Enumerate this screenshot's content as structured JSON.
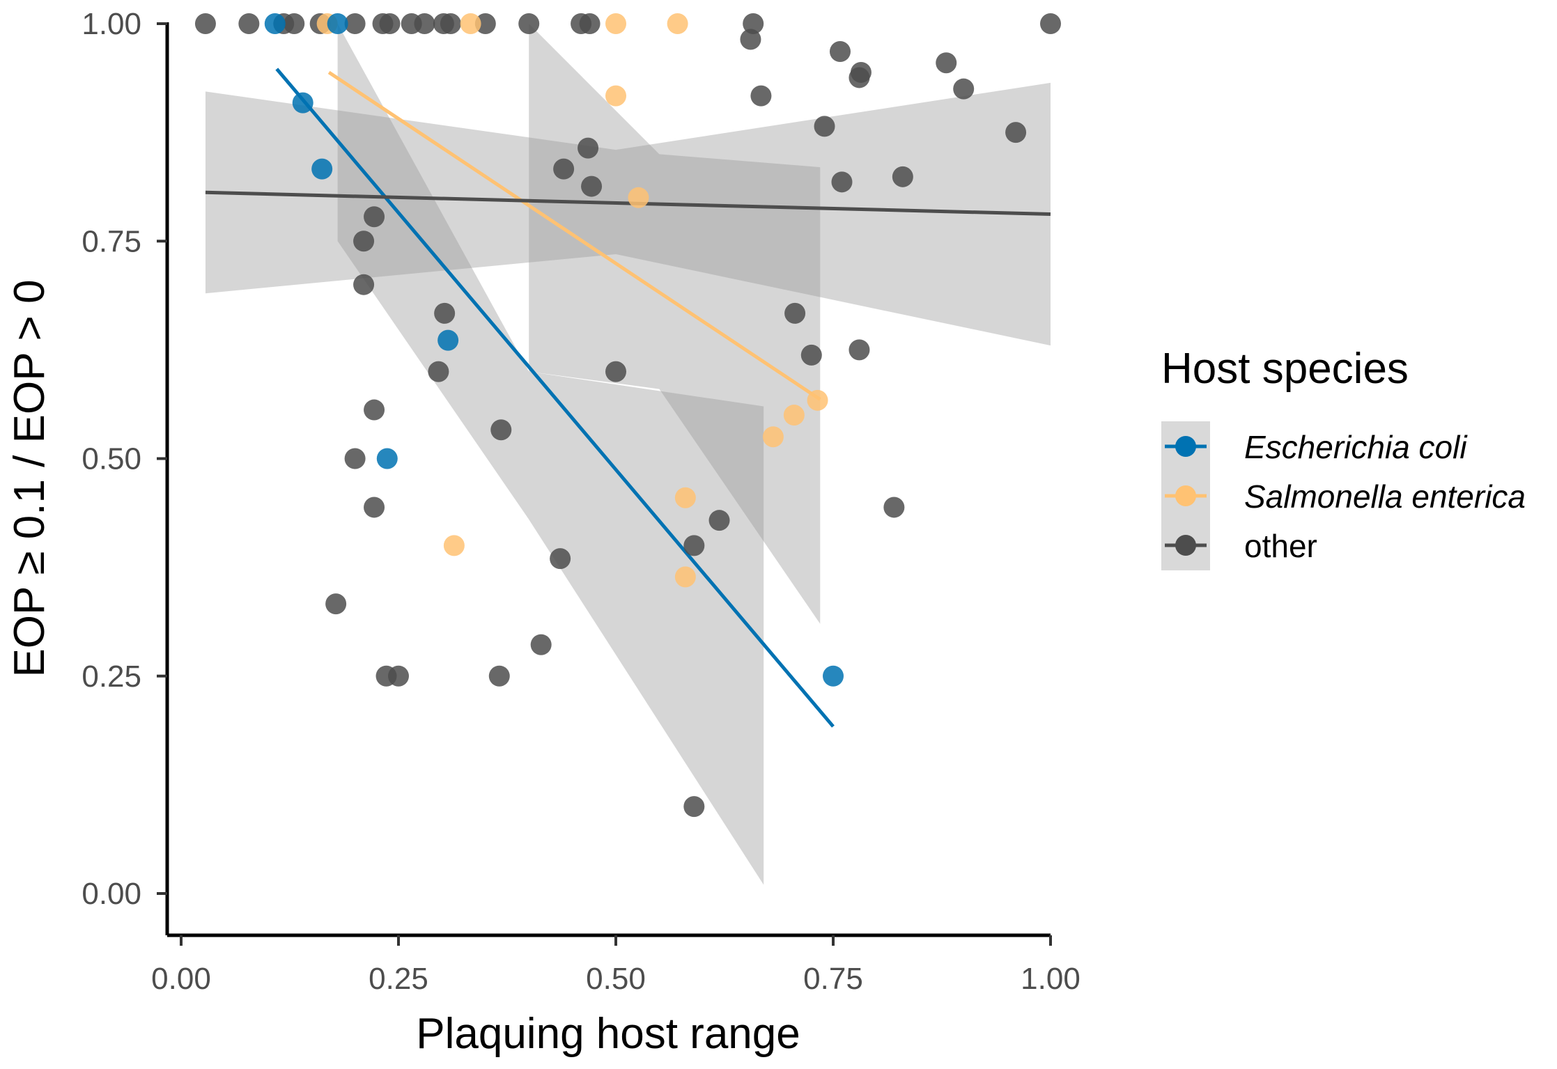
{
  "chart_data": {
    "type": "scatter",
    "title": "",
    "xlabel": "Plaquing host range",
    "ylabel": "EOP ≥ 0.1 / EOP > 0",
    "xlim": [
      0,
      1
    ],
    "ylim": [
      0,
      1
    ],
    "x_ticks": [
      "0.00",
      "0.25",
      "0.50",
      "0.75",
      "1.00"
    ],
    "y_ticks": [
      "0.00",
      "0.25",
      "0.50",
      "0.75",
      "1.00"
    ],
    "grid": false,
    "legend": {
      "title": "Host species",
      "position": "right",
      "entries": [
        "Escherichia coli",
        "Salmonella enterica",
        "other"
      ]
    },
    "series": [
      {
        "name": "Escherichia coli",
        "color": "#0072b2",
        "points": [
          [
            0.108,
            1.0
          ],
          [
            0.18,
            1.0
          ],
          [
            0.14,
            0.909
          ],
          [
            0.162,
            0.833
          ],
          [
            0.307,
            0.636
          ],
          [
            0.237,
            0.5
          ],
          [
            0.75,
            0.25
          ]
        ],
        "fit": {
          "x": [
            0.11,
            0.75
          ],
          "y": [
            0.948,
            0.192
          ]
        },
        "ci": {
          "x": [
            0.18,
            0.4,
            0.67
          ],
          "upper": [
            1.0,
            0.6,
            0.56
          ],
          "lower": [
            0.75,
            0.43,
            0.01
          ]
        }
      },
      {
        "name": "Salmonella enterica",
        "color": "#ffc273",
        "points": [
          [
            0.168,
            1.0
          ],
          [
            0.333,
            1.0
          ],
          [
            0.5,
            1.0
          ],
          [
            0.571,
            1.0
          ],
          [
            0.5,
            0.917
          ],
          [
            0.526,
            0.8
          ],
          [
            0.732,
            0.567
          ],
          [
            0.705,
            0.55
          ],
          [
            0.681,
            0.525
          ],
          [
            0.58,
            0.455
          ],
          [
            0.314,
            0.4
          ],
          [
            0.58,
            0.364
          ]
        ],
        "fit": {
          "x": [
            0.17,
            0.735
          ],
          "y": [
            0.944,
            0.568
          ]
        },
        "ci": {
          "x": [
            0.4,
            0.55,
            0.735
          ],
          "upper": [
            1.0,
            0.85,
            0.835
          ],
          "lower": [
            0.6,
            0.58,
            0.31
          ]
        }
      },
      {
        "name": "other",
        "color": "#4d4d4d",
        "points": [
          [
            0.028,
            1.0
          ],
          [
            0.078,
            1.0
          ],
          [
            0.118,
            1.0
          ],
          [
            0.13,
            1.0
          ],
          [
            0.16,
            1.0
          ],
          [
            0.2,
            1.0
          ],
          [
            0.232,
            1.0
          ],
          [
            0.24,
            1.0
          ],
          [
            0.265,
            1.0
          ],
          [
            0.28,
            1.0
          ],
          [
            0.302,
            1.0
          ],
          [
            0.31,
            1.0
          ],
          [
            0.35,
            1.0
          ],
          [
            0.4,
            1.0
          ],
          [
            0.46,
            1.0
          ],
          [
            0.47,
            1.0
          ],
          [
            0.658,
            1.0
          ],
          [
            0.655,
            0.982
          ],
          [
            0.758,
            0.968
          ],
          [
            0.782,
            0.944
          ],
          [
            0.78,
            0.938
          ],
          [
            0.88,
            0.955
          ],
          [
            0.9,
            0.925
          ],
          [
            0.667,
            0.917
          ],
          [
            0.74,
            0.882
          ],
          [
            0.96,
            0.875
          ],
          [
            0.468,
            0.857
          ],
          [
            0.44,
            0.833
          ],
          [
            0.472,
            0.813
          ],
          [
            0.76,
            0.818
          ],
          [
            0.83,
            0.824
          ],
          [
            0.222,
            0.778
          ],
          [
            0.21,
            0.75
          ],
          [
            0.21,
            0.7
          ],
          [
            0.303,
            0.667
          ],
          [
            0.706,
            0.667
          ],
          [
            0.725,
            0.619
          ],
          [
            0.78,
            0.625
          ],
          [
            0.296,
            0.6
          ],
          [
            0.5,
            0.6
          ],
          [
            0.222,
            0.556
          ],
          [
            0.368,
            0.533
          ],
          [
            0.2,
            0.5
          ],
          [
            0.222,
            0.444
          ],
          [
            0.82,
            0.444
          ],
          [
            0.619,
            0.429
          ],
          [
            0.59,
            0.4
          ],
          [
            0.436,
            0.385
          ],
          [
            0.178,
            0.333
          ],
          [
            0.414,
            0.286
          ],
          [
            0.236,
            0.25
          ],
          [
            0.25,
            0.25
          ],
          [
            0.366,
            0.25
          ],
          [
            0.59,
            0.1
          ],
          [
            1.0,
            1.0
          ]
        ],
        "fit": {
          "x": [
            0.028,
            1.0
          ],
          "y": [
            0.806,
            0.781
          ]
        },
        "ci": {
          "x": [
            0.028,
            0.5,
            1.0
          ],
          "upper": [
            0.922,
            0.855,
            0.932
          ],
          "lower": [
            0.69,
            0.735,
            0.63
          ]
        }
      }
    ]
  }
}
